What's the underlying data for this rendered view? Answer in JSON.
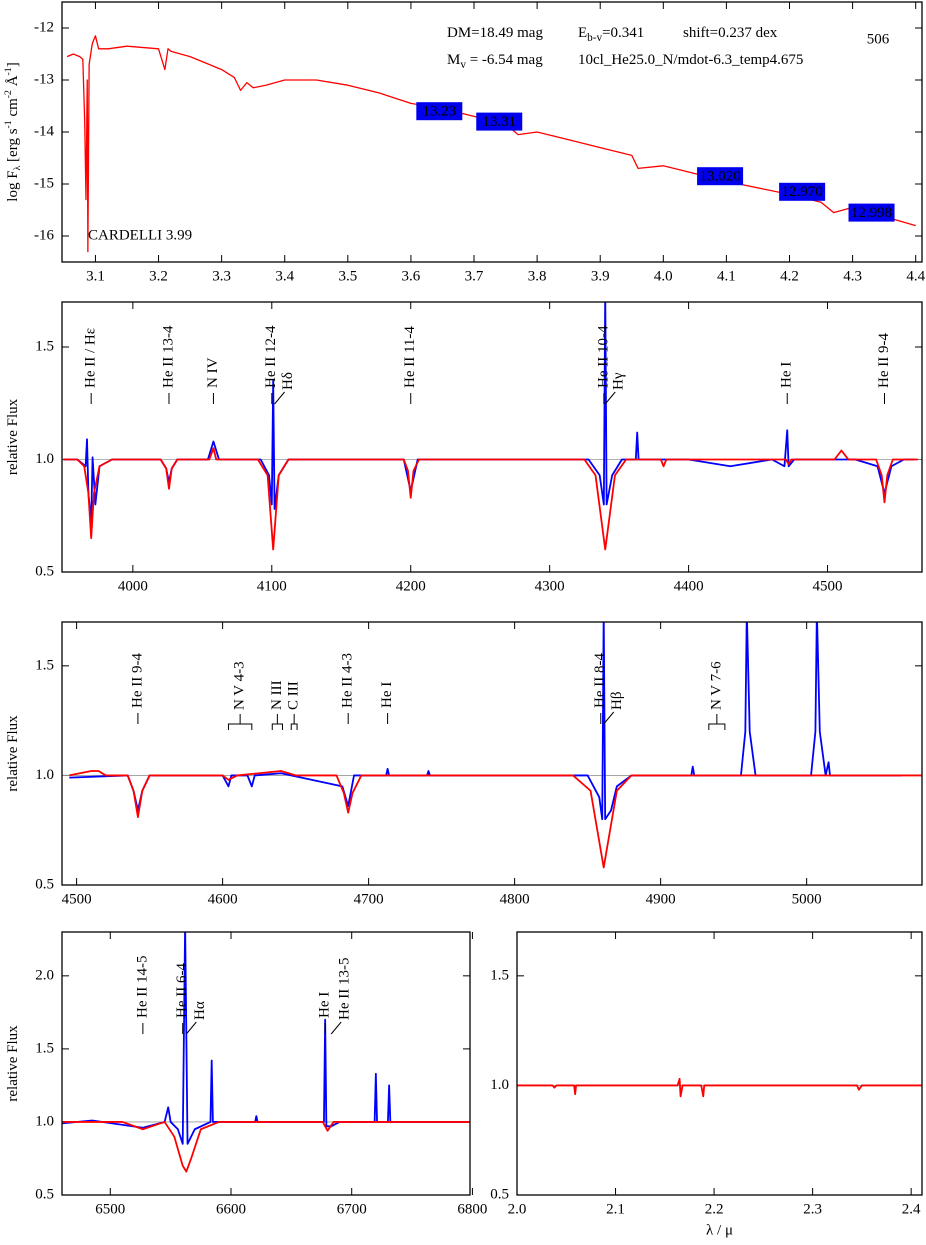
{
  "chart_data": [
    {
      "type": "line",
      "xlim": [
        3.047,
        4.41
      ],
      "ylim": [
        -16.5,
        -11.5
      ],
      "xticks": [
        3.1,
        3.2,
        3.3,
        3.4,
        3.5,
        3.6,
        3.7,
        3.8,
        3.9,
        {
          "value": 4,
          "label": "4.0"
        },
        4.1,
        4.2,
        4.3,
        4.4
      ],
      "yticks": [
        -12,
        -13,
        -14,
        -15,
        -16
      ],
      "ylabel": [
        {
          "text": "log F"
        },
        {
          "text": "λ",
          "shift": "sub"
        },
        {
          "text": " [erg s"
        },
        {
          "text": "-1",
          "shift": "sup"
        },
        {
          "text": " cm"
        },
        {
          "text": "-2",
          "shift": "sup"
        },
        {
          "text": " Å"
        },
        {
          "text": "-1",
          "shift": "sup"
        },
        {
          "text": "]"
        }
      ],
      "annotations": [
        [
          {
            "text": "DM=18.49 mag"
          }
        ],
        [
          {
            "text": "E"
          },
          {
            "text": "b-v",
            "shift": "sub"
          },
          {
            "text": "=0.341"
          }
        ],
        [
          {
            "text": "shift=0.237 dex"
          }
        ],
        [
          {
            "text": "M"
          },
          {
            "text": "v",
            "shift": "sub"
          },
          {
            "text": " =  -6.54 mag"
          }
        ],
        [
          {
            "text": "10cl_He25.0_N/mdot-6.3_temp4.675"
          }
        ]
      ],
      "title": "506",
      "note": "CARDELLI 3.99",
      "series": [
        {
          "color": "#ff0000",
          "x": [
            3.055,
            3.065,
            3.075,
            3.08,
            3.083,
            3.085,
            3.087,
            3.088,
            3.09,
            3.095,
            3.1,
            3.105,
            3.12,
            3.15,
            3.2,
            3.21,
            3.215,
            3.22,
            3.25,
            3.28,
            3.3,
            3.32,
            3.33,
            3.34,
            3.35,
            3.37,
            3.4,
            3.45,
            3.5,
            3.55,
            3.6,
            3.65,
            3.7,
            3.75,
            3.77,
            3.8,
            3.85,
            3.9,
            3.95,
            3.96,
            4.0,
            4.1,
            4.2,
            4.25,
            4.27,
            4.3,
            4.4
          ],
          "values": [
            -12.55,
            -12.5,
            -12.55,
            -12.6,
            -13.8,
            -15.3,
            -13.0,
            -16.3,
            -12.7,
            -12.3,
            -12.15,
            -12.4,
            -12.4,
            -12.35,
            -12.4,
            -12.8,
            -12.4,
            -12.45,
            -12.55,
            -12.7,
            -12.8,
            -12.95,
            -13.2,
            -13.05,
            -13.15,
            -13.1,
            -13.0,
            -13.0,
            -13.1,
            -13.25,
            -13.45,
            -13.55,
            -13.7,
            -13.85,
            -14.05,
            -14.0,
            -14.15,
            -14.3,
            -14.45,
            -14.7,
            -14.65,
            -14.95,
            -15.2,
            -15.35,
            -15.55,
            -15.45,
            -15.8
          ]
        }
      ],
      "photometry": [
        {
          "x": 3.645,
          "y": -13.6,
          "label": "13.23"
        },
        {
          "x": 3.74,
          "y": -13.8,
          "label": "13.31"
        },
        {
          "x": 4.09,
          "y": -14.85,
          "label": "13.020"
        },
        {
          "x": 4.22,
          "y": -15.15,
          "label": "12.970"
        },
        {
          "x": 4.33,
          "y": -15.55,
          "label": "12.998"
        }
      ]
    },
    {
      "type": "line",
      "xlim": [
        3949,
        4568
      ],
      "ylim": [
        0.5,
        1.7
      ],
      "xticks": [
        4000,
        4100,
        4200,
        4300,
        4400,
        4500
      ],
      "yticks": [
        0.5,
        {
          "value": 1,
          "label": "1.0"
        },
        1.5
      ],
      "hline": 1,
      "ylabel": [
        {
          "text": "relative Flux"
        }
      ],
      "line_labels": [
        {
          "x": 3970,
          "label": "He II / Hε"
        },
        {
          "x": 4026,
          "label": "He II 13-4"
        },
        {
          "x": 4058,
          "label": "N IV"
        },
        {
          "x": 4100,
          "label": "He II 12-4"
        },
        {
          "x": 4102,
          "label": "Hδ"
        },
        {
          "x": 4200,
          "label": "He II 11-4"
        },
        {
          "x": 4339,
          "label": "He II 10-4"
        },
        {
          "x": 4340,
          "label": "Hγ"
        },
        {
          "x": 4471,
          "label": "He I"
        },
        {
          "x": 4541,
          "label": "He II 9-4"
        }
      ],
      "series": [
        {
          "color": "#0000ff",
          "x": [
            3950,
            3960,
            3966,
            3967,
            3968,
            3970,
            3971,
            3973,
            3976,
            3985,
            4020,
            4024,
            4026,
            4028,
            4032,
            4054,
            4058,
            4062,
            4092,
            4098,
            4100,
            4101,
            4102,
            4105,
            4112,
            4195,
            4200,
            4205,
            4328,
            4336,
            4339,
            4340,
            4341,
            4345,
            4352,
            4362,
            4363,
            4364,
            4400,
            4430,
            4460,
            4469,
            4471,
            4472,
            4476,
            4520,
            4536,
            4541,
            4546,
            4555,
            4562
          ],
          "values": [
            1.0,
            1.0,
            0.97,
            1.09,
            0.85,
            0.72,
            1.01,
            0.8,
            0.97,
            1.0,
            1.0,
            0.96,
            0.9,
            0.96,
            1.0,
            1.0,
            1.08,
            1.0,
            1.0,
            0.93,
            0.8,
            1.35,
            0.78,
            0.93,
            1.0,
            1.0,
            0.86,
            1.0,
            1.0,
            0.93,
            0.8,
            1.75,
            0.8,
            0.93,
            1.0,
            1.0,
            1.12,
            1.0,
            1.0,
            0.97,
            1.0,
            0.97,
            1.13,
            0.97,
            1.0,
            1.0,
            0.97,
            0.85,
            0.97,
            1.0,
            1.0
          ]
        },
        {
          "color": "#ff0000",
          "x": [
            3950,
            3960,
            3965,
            3968,
            3970,
            3972,
            3976,
            3985,
            4020,
            4024,
            4026,
            4028,
            4032,
            4055,
            4058,
            4060,
            4090,
            4097,
            4101,
            4105,
            4112,
            4195,
            4198,
            4200,
            4202,
            4206,
            4325,
            4333,
            4340,
            4347,
            4355,
            4380,
            4382,
            4384,
            4470,
            4472,
            4474,
            4505,
            4510,
            4515,
            4535,
            4539,
            4541,
            4543,
            4547,
            4565
          ],
          "values": [
            1.0,
            1.0,
            0.97,
            0.85,
            0.65,
            0.85,
            0.97,
            1.0,
            1.0,
            0.96,
            0.87,
            0.96,
            1.0,
            1.0,
            1.05,
            1.0,
            1.0,
            0.93,
            0.6,
            0.93,
            1.0,
            1.0,
            0.95,
            0.83,
            0.95,
            1.0,
            1.0,
            0.93,
            0.6,
            0.93,
            1.0,
            1.0,
            0.97,
            1.0,
            1.0,
            0.98,
            1.0,
            1.0,
            1.04,
            1.0,
            1.0,
            0.93,
            0.81,
            0.93,
            1.0,
            1.0
          ]
        }
      ]
    },
    {
      "type": "line",
      "xlim": [
        4490,
        5079
      ],
      "ylim": [
        0.5,
        1.7
      ],
      "xticks": [
        4500,
        4600,
        4700,
        4800,
        4900,
        5000
      ],
      "yticks": [
        0.5,
        {
          "value": 1,
          "label": "1.0"
        },
        1.5
      ],
      "hline": 1,
      "ylabel": [
        {
          "text": "relative Flux"
        }
      ],
      "line_labels": [
        {
          "x": 4542,
          "label": "He II 9-4"
        },
        {
          "x": [
            4604,
            4620
          ],
          "label": "N V 4-3"
        },
        {
          "x": [
            4634,
            4641
          ],
          "label": "N III"
        },
        {
          "x": [
            4647,
            4651
          ],
          "label": "C III"
        },
        {
          "x": 4686,
          "label": "He II 4-3"
        },
        {
          "x": 4713,
          "label": "He I"
        },
        {
          "x": 4859,
          "label": "He II 8-4"
        },
        {
          "x": 4861,
          "label": "Hβ"
        },
        {
          "x": [
            4933,
            4944
          ],
          "label": "N V 7-6"
        }
      ],
      "series": [
        {
          "color": "#0000ff",
          "x": [
            4495,
            4535,
            4539,
            4542,
            4545,
            4550,
            4600,
            4604,
            4606,
            4617,
            4620,
            4622,
            4640,
            4682,
            4686,
            4690,
            4712,
            4713,
            4714,
            4740,
            4741,
            4742,
            4850,
            4858,
            4860,
            4861,
            4862,
            4866,
            4870,
            4880,
            4921,
            4922,
            4923,
            4955,
            4958,
            4959,
            4961,
            4965,
            5003,
            5006,
            5007,
            5009,
            5013,
            5015,
            5016,
            5065
          ],
          "values": [
            0.99,
            1.0,
            0.93,
            0.84,
            0.93,
            1.0,
            1.0,
            0.95,
            1.0,
            1.0,
            0.95,
            1.0,
            1.01,
            0.95,
            0.86,
            1.0,
            1.0,
            1.03,
            1.0,
            1.0,
            1.02,
            1.0,
            1.0,
            0.9,
            0.8,
            1.75,
            0.8,
            0.84,
            0.95,
            1.0,
            1.0,
            1.04,
            1.0,
            1.0,
            1.2,
            1.75,
            1.2,
            1.0,
            1.0,
            1.2,
            1.75,
            1.2,
            1.0,
            1.06,
            1.0,
            1.0
          ]
        },
        {
          "color": "#ff0000",
          "x": [
            4495,
            4510,
            4515,
            4520,
            4535,
            4539,
            4542,
            4545,
            4550,
            4600,
            4604,
            4610,
            4640,
            4650,
            4678,
            4683,
            4686,
            4689,
            4695,
            4840,
            4852,
            4861,
            4870,
            4880,
            5079
          ],
          "values": [
            1.0,
            1.02,
            1.02,
            1.0,
            1.0,
            0.93,
            0.81,
            0.93,
            1.0,
            1.0,
            0.98,
            1.0,
            1.02,
            1.0,
            1.0,
            0.92,
            0.83,
            0.92,
            1.0,
            1.0,
            0.93,
            0.58,
            0.93,
            1.0,
            1.0
          ]
        }
      ]
    },
    {
      "type": "line",
      "xlim": [
        6460,
        6798
      ],
      "ylim": [
        0.5,
        2.3
      ],
      "xticks": [
        6500,
        6600,
        6700,
        6800
      ],
      "yticks": [
        0.5,
        {
          "value": 1,
          "label": "1.0"
        },
        1.5,
        {
          "value": 2,
          "label": "2.0"
        }
      ],
      "hline": 1,
      "ylabel": [
        {
          "text": "relative Flux"
        }
      ],
      "line_labels": [
        {
          "x": 6527,
          "label": "He II 14-5"
        },
        {
          "x": 6560,
          "label": "He II 6-4"
        },
        {
          "x": 6563,
          "label": "Hα"
        },
        {
          "x": 6678,
          "label": "He I"
        },
        {
          "x": 6683,
          "label": "He II 13-5"
        }
      ],
      "series": [
        {
          "color": "#0000ff",
          "x": [
            6460,
            6485,
            6527,
            6545,
            6548,
            6550,
            6556,
            6560,
            6562,
            6564,
            6570,
            6583,
            6584,
            6585,
            6620,
            6621,
            6622,
            6677,
            6678,
            6679,
            6683,
            6690,
            6719,
            6720,
            6721,
            6730,
            6731,
            6732,
            6798
          ],
          "values": [
            0.99,
            1.01,
            0.96,
            1.0,
            1.1,
            1.0,
            0.95,
            0.85,
            2.35,
            0.85,
            0.95,
            1.0,
            1.42,
            1.0,
            1.0,
            1.04,
            1.0,
            1.0,
            1.7,
            0.97,
            0.97,
            1.0,
            1.0,
            1.33,
            1.0,
            1.0,
            1.25,
            1.0,
            1.0
          ]
        },
        {
          "color": "#ff0000",
          "x": [
            6460,
            6510,
            6527,
            6545,
            6553,
            6560,
            6563,
            6567,
            6575,
            6590,
            6676,
            6680,
            6685,
            6798
          ],
          "values": [
            1.0,
            1.0,
            0.95,
            1.0,
            0.9,
            0.7,
            0.66,
            0.75,
            0.95,
            1.0,
            1.0,
            0.94,
            1.0,
            1.0
          ]
        }
      ]
    },
    {
      "type": "line",
      "xlim": [
        2.0,
        2.411
      ],
      "ylim": [
        0.5,
        1.7
      ],
      "xticks": [
        {
          "value": 2,
          "label": "2.0"
        },
        2.1,
        2.2,
        2.3,
        2.4
      ],
      "yticks": [
        0.5,
        {
          "value": 1,
          "label": "1.0"
        },
        1.5
      ],
      "hline": 1,
      "xlabel": "λ / μ",
      "series": [
        {
          "color": "#ff0000",
          "x": [
            2.0,
            2.036,
            2.038,
            2.04,
            2.058,
            2.059,
            2.06,
            2.163,
            2.165,
            2.166,
            2.168,
            2.187,
            2.189,
            2.19,
            2.345,
            2.347,
            2.35,
            2.411
          ],
          "values": [
            1.0,
            1.0,
            0.99,
            1.0,
            1.0,
            0.96,
            1.0,
            1.0,
            1.03,
            0.95,
            1.0,
            1.0,
            0.95,
            1.0,
            1.0,
            0.98,
            1.0,
            1.0
          ]
        }
      ]
    }
  ]
}
